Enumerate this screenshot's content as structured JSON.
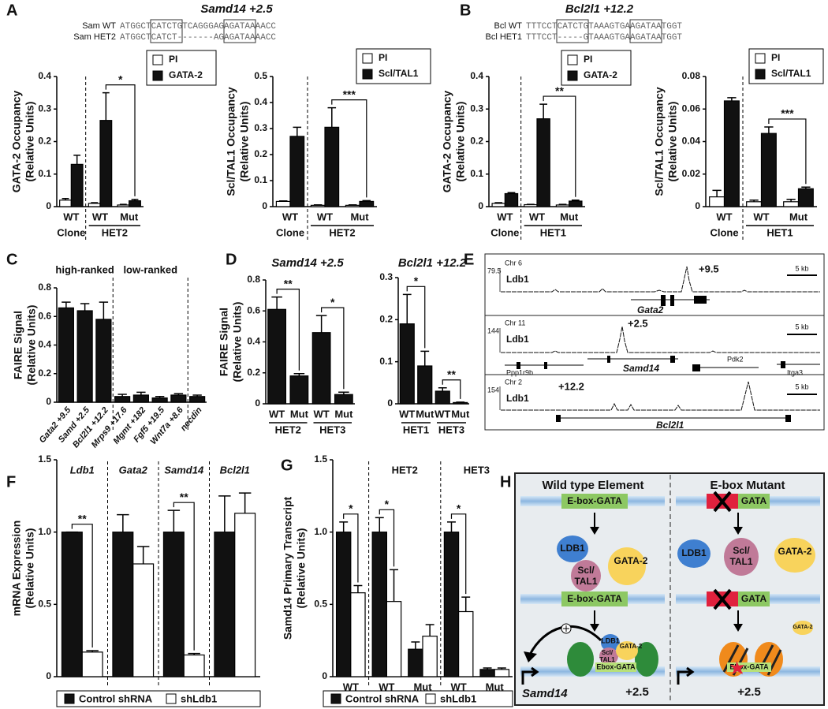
{
  "panel_labels": [
    "A",
    "B",
    "C",
    "D",
    "E",
    "F",
    "G",
    "H"
  ],
  "sequences": [
    {
      "title": "Samd14 +2.5",
      "rows": [
        {
          "name": "Sam WT",
          "sequence": "ATGGCTCATCTGTCAGGGAGAGATAAAACC"
        },
        {
          "name": "Sam HET2",
          "sequence": "ATGGCTCATCT-------AGAGATAAAACC"
        }
      ]
    },
    {
      "title": "Bcl2l1 +12.2",
      "rows": [
        {
          "name": "Bcl WT",
          "sequence": "TTTCCTCATCTGTAAAGTGAAGATAATGGT"
        },
        {
          "name": "Bcl HET1",
          "sequence": "TTTCCT-----GTAAAGTGAAGATAATGGT"
        }
      ]
    }
  ],
  "chart_data": [
    {
      "type": "bar",
      "ylabel": [
        "GATA-2 Occupancy",
        "(Relative Units)"
      ],
      "categories": [
        "WT",
        "WT",
        "Mut"
      ],
      "groups": [
        {
          "label": "Clone",
          "size": 1
        },
        {
          "label": "HET2",
          "size": 2
        }
      ],
      "group_labels": "bottom",
      "separators": true,
      "series": [
        {
          "name": "PI",
          "color": "#ffffff",
          "values": [
            0.02,
            0.01,
            0.005
          ],
          "errors": [
            0.005,
            0.002,
            0.002
          ]
        },
        {
          "name": "GATA-2",
          "color": "#111111",
          "values": [
            0.13,
            0.265,
            0.018
          ],
          "errors": [
            0.028,
            0.085,
            0.004
          ]
        }
      ],
      "ylim": [
        0,
        0.4
      ],
      "yticks": [
        0,
        0.1,
        0.2,
        0.3,
        0.4
      ],
      "legend": "top-right",
      "significance": [
        {
          "label": "*",
          "bars": [
            [
              1,
              1
            ],
            [
              2,
              1
            ]
          ]
        }
      ]
    },
    {
      "type": "bar",
      "ylabel": [
        "Scl/TAL1 Occupancy",
        "(Relative Units)"
      ],
      "categories": [
        "WT",
        "WT",
        "Mut"
      ],
      "groups": [
        {
          "label": "Clone",
          "size": 1
        },
        {
          "label": "HET2",
          "size": 2
        }
      ],
      "group_labels": "bottom",
      "separators": true,
      "series": [
        {
          "name": "PI",
          "color": "#ffffff",
          "values": [
            0.02,
            0.005,
            0.005
          ],
          "errors": [
            0.002,
            0.002,
            0.002
          ]
        },
        {
          "name": "Scl/TAL1",
          "color": "#111111",
          "values": [
            0.27,
            0.305,
            0.02
          ],
          "errors": [
            0.035,
            0.075,
            0.003
          ]
        }
      ],
      "ylim": [
        0,
        0.5
      ],
      "yticks": [
        0,
        0.1,
        0.2,
        0.3,
        0.4,
        0.5
      ],
      "legend": "top-right",
      "significance": [
        {
          "label": "***",
          "bars": [
            [
              1,
              1
            ],
            [
              2,
              1
            ]
          ]
        }
      ]
    },
    {
      "type": "bar",
      "ylabel": [
        "GATA-2 Occupancy",
        "(Relative Units)"
      ],
      "categories": [
        "WT",
        "WT",
        "Mut"
      ],
      "groups": [
        {
          "label": "Clone",
          "size": 1
        },
        {
          "label": "HET1",
          "size": 2
        }
      ],
      "group_labels": "bottom",
      "separators": true,
      "series": [
        {
          "name": "PI",
          "color": "#ffffff",
          "values": [
            0.01,
            0.006,
            0.005
          ],
          "errors": [
            0.002,
            0.001,
            0.002
          ]
        },
        {
          "name": "GATA-2",
          "color": "#111111",
          "values": [
            0.04,
            0.27,
            0.017
          ],
          "errors": [
            0.003,
            0.045,
            0.003
          ]
        }
      ],
      "ylim": [
        0,
        0.4
      ],
      "yticks": [
        0,
        0.1,
        0.2,
        0.3,
        0.4
      ],
      "legend": "top-right",
      "significance": [
        {
          "label": "**",
          "bars": [
            [
              1,
              1
            ],
            [
              2,
              1
            ]
          ]
        }
      ]
    },
    {
      "type": "bar",
      "ylabel": [
        "Scl/TAL1 Occupancy",
        "(Relative Units)"
      ],
      "categories": [
        "WT",
        "WT",
        "Mut"
      ],
      "groups": [
        {
          "label": "Clone",
          "size": 1
        },
        {
          "label": "HET1",
          "size": 2
        }
      ],
      "group_labels": "bottom",
      "separators": true,
      "series": [
        {
          "name": "PI",
          "color": "#ffffff",
          "values": [
            0.006,
            0.003,
            0.003
          ],
          "errors": [
            0.004,
            0.001,
            0.0015
          ]
        },
        {
          "name": "Scl/TAL1",
          "color": "#111111",
          "values": [
            0.065,
            0.045,
            0.011
          ],
          "errors": [
            0.002,
            0.004,
            0.001
          ]
        }
      ],
      "ylim": [
        0,
        0.08
      ],
      "yticks": [
        0,
        0.02,
        0.04,
        0.06,
        0.08
      ],
      "legend": "top-right",
      "significance": [
        {
          "label": "***",
          "bars": [
            [
              1,
              1
            ],
            [
              2,
              1
            ]
          ]
        }
      ]
    },
    {
      "type": "bar",
      "ylabel": [
        "FAIRE Signal",
        "(Relative Units)"
      ],
      "categories": [
        "Gata2 +9.5",
        "Samd +2.5",
        "Bcl2l1 +12.2",
        "Mrps9 +17.6",
        "Mgmt +182",
        "Fgf5 +19.5",
        "Wnt7a +8.6",
        "necdin"
      ],
      "groups": [
        {
          "label": "high-ranked",
          "size": 3
        },
        {
          "label": "low-ranked",
          "size": 4
        },
        {
          "label": null,
          "size": 1
        }
      ],
      "group_labels": "top",
      "separators": true,
      "values": [
        0.66,
        0.64,
        0.58,
        0.04,
        0.05,
        0.03,
        0.05,
        0.04
      ],
      "errors": [
        0.04,
        0.05,
        0.12,
        0.015,
        0.02,
        0.01,
        0.01,
        0.01
      ],
      "color": "#111111",
      "ylim": [
        0,
        0.8
      ],
      "yticks": [
        0,
        0.2,
        0.4,
        0.6,
        0.8
      ]
    },
    {
      "type": "bar",
      "title": "Samd14 +2.5",
      "ylabel": [
        "FAIRE Signal",
        "(Relative Units)"
      ],
      "categories": [
        "WT",
        "Mut",
        "WT",
        "Mut"
      ],
      "groups": [
        {
          "label": "HET2",
          "size": 2
        },
        {
          "label": "HET3",
          "size": 2
        }
      ],
      "group_labels": "bottom",
      "separators": false,
      "values": [
        0.61,
        0.18,
        0.46,
        0.06
      ],
      "errors": [
        0.08,
        0.015,
        0.11,
        0.015
      ],
      "color": "#111111",
      "ylim": [
        0,
        0.8
      ],
      "yticks": [
        0,
        0.2,
        0.4,
        0.6,
        0.8
      ],
      "significance": [
        {
          "label": "**",
          "bars": [
            [
              0,
              0
            ],
            [
              1,
              0
            ]
          ]
        },
        {
          "label": "*",
          "bars": [
            [
              2,
              0
            ],
            [
              3,
              0
            ]
          ]
        }
      ]
    },
    {
      "type": "bar",
      "title": "Bcl2l1 +12.2",
      "categories": [
        "WT",
        "Mut",
        "WT",
        "Mut"
      ],
      "groups": [
        {
          "label": "HET1",
          "size": 2
        },
        {
          "label": "HET3",
          "size": 2
        }
      ],
      "group_labels": "bottom",
      "separators": false,
      "values": [
        0.19,
        0.09,
        0.03,
        0.003
      ],
      "errors": [
        0.07,
        0.035,
        0.008,
        0.001
      ],
      "color": "#111111",
      "ylim": [
        0,
        0.3
      ],
      "yticks": [
        0,
        0.1,
        0.2,
        0.3
      ],
      "significance": [
        {
          "label": "*",
          "bars": [
            [
              0,
              0
            ],
            [
              1,
              0
            ]
          ]
        },
        {
          "label": "**",
          "bars": [
            [
              2,
              0
            ],
            [
              3,
              0
            ]
          ]
        }
      ]
    },
    {
      "type": "bar",
      "ylabel": [
        "mRNA Expression",
        "(Relative Units)"
      ],
      "categories": [
        "Ldb1",
        "Gata2",
        "Samd14",
        "Bcl2l1"
      ],
      "category_labels": "top",
      "separators": true,
      "series": [
        {
          "name": "Control shRNA",
          "color": "#111111",
          "values": [
            1,
            1,
            1,
            1
          ],
          "errors": [
            0,
            0.12,
            0.15,
            0.25
          ]
        },
        {
          "name": "shLdb1",
          "color": "#ffffff",
          "values": [
            0.17,
            0.78,
            0.15,
            1.13
          ],
          "errors": [
            0.01,
            0.12,
            0.01,
            0.14
          ]
        }
      ],
      "ylim": [
        0,
        1.5
      ],
      "yticks": [
        0,
        0.5,
        {
          "value": 1,
          "label": "1.0"
        },
        1.5
      ],
      "legend": "bottom",
      "significance": [
        {
          "label": "**",
          "bars": [
            [
              0,
              0
            ],
            [
              0,
              1
            ]
          ]
        },
        {
          "label": "**",
          "bars": [
            [
              2,
              0
            ],
            [
              2,
              1
            ]
          ]
        }
      ]
    },
    {
      "type": "bar",
      "ylabel": [
        "Samd14 Primary Transcript",
        "(Relative Units)"
      ],
      "categories": [
        "WT",
        "WT",
        "Mut",
        "WT",
        "Mut"
      ],
      "groups": [
        {
          "label": null,
          "size": 1
        },
        {
          "label": "HET2",
          "size": 2
        },
        {
          "label": "HET3",
          "size": 2
        }
      ],
      "group_labels": "top",
      "separators": true,
      "series": [
        {
          "name": "Control shRNA",
          "color": "#111111",
          "values": [
            1.0,
            1.0,
            0.19,
            1.0,
            0.05
          ],
          "errors": [
            0.07,
            0.1,
            0.05,
            0.07,
            0.01
          ]
        },
        {
          "name": "shLdb1",
          "color": "#ffffff",
          "values": [
            0.58,
            0.52,
            0.28,
            0.45,
            0.05
          ],
          "errors": [
            0.05,
            0.22,
            0.08,
            0.1,
            0.01
          ]
        }
      ],
      "ylim": [
        0,
        1.5
      ],
      "yticks": [
        0,
        0.5,
        {
          "value": 1,
          "label": "1.0"
        },
        1.5
      ],
      "legend": "bottom",
      "significance": [
        {
          "label": "*",
          "bars": [
            [
              0,
              0
            ],
            [
              0,
              1
            ]
          ]
        },
        {
          "label": "*",
          "bars": [
            [
              1,
              0
            ],
            [
              1,
              1
            ]
          ]
        },
        {
          "label": "*",
          "bars": [
            [
              3,
              0
            ],
            [
              3,
              1
            ]
          ]
        }
      ]
    }
  ],
  "tracks": [
    {
      "chromosome": "Chr 6",
      "max": 79.5,
      "name": "Ldb1",
      "peak": "+9.5",
      "scale_bar": "5 kb",
      "genes": [
        "Gata2"
      ]
    },
    {
      "chromosome": "Chr 11",
      "max": 144,
      "name": "Ldb1",
      "peak": "+2.5",
      "scale_bar": "5 kb",
      "genes": [
        "Ppp1r9b",
        "Samd14",
        "Pdk2",
        "Itga3"
      ]
    },
    {
      "chromosome": "Chr 2",
      "max": 154,
      "name": "Ldb1",
      "peak": "+12.2",
      "scale_bar": "5 kb",
      "genes": [
        "Bcl2l1"
      ]
    }
  ],
  "diagram": {
    "columns": [
      {
        "title": "Wild type Element",
        "element": "E-box-GATA",
        "complex": [
          "LDB1",
          [
            "Scl/",
            "TAL1"
          ],
          "GATA-2"
        ],
        "bound_element": "E-box-GATA",
        "active_complex": [
          "LDB1",
          [
            "Scl/",
            "TAL1"
          ],
          "GATA-2"
        ],
        "chromatin_element": "Ebox-GATA",
        "gene": "Samd14",
        "site": "+2.5"
      },
      {
        "title": "E-box Mutant",
        "element": "GATA",
        "factors": [
          "LDB1",
          [
            "Scl/",
            "TAL1"
          ],
          "GATA-2"
        ],
        "bound_element": "GATA",
        "bound_factor": "GATA-2",
        "chromatin_element": "Ebox-GATA",
        "site": "+2.5"
      }
    ]
  }
}
